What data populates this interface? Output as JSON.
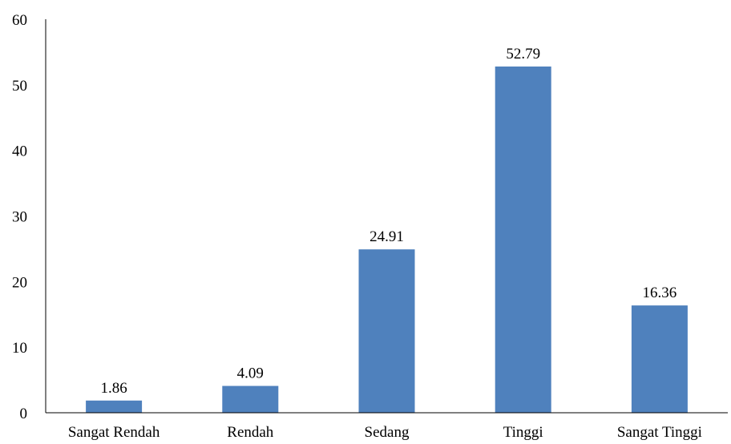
{
  "chart_data": {
    "type": "bar",
    "categories": [
      "Sangat Rendah",
      "Rendah",
      "Sedang",
      "Tinggi",
      "Sangat Tinggi"
    ],
    "values": [
      1.86,
      4.09,
      24.91,
      52.79,
      16.36
    ],
    "value_labels": [
      "1.86",
      "4.09",
      "24.91",
      "52.79",
      "16.36"
    ],
    "title": "",
    "xlabel": "",
    "ylabel": "",
    "ylim": [
      0,
      60
    ],
    "yticks": [
      0,
      10,
      20,
      30,
      40,
      50,
      60
    ],
    "ytick_labels": [
      "0",
      "10",
      "20",
      "30",
      "40",
      "50",
      "60"
    ],
    "grid": false,
    "legend": "none",
    "bar_color": "#4f81bd",
    "axis_color": "#000000"
  }
}
